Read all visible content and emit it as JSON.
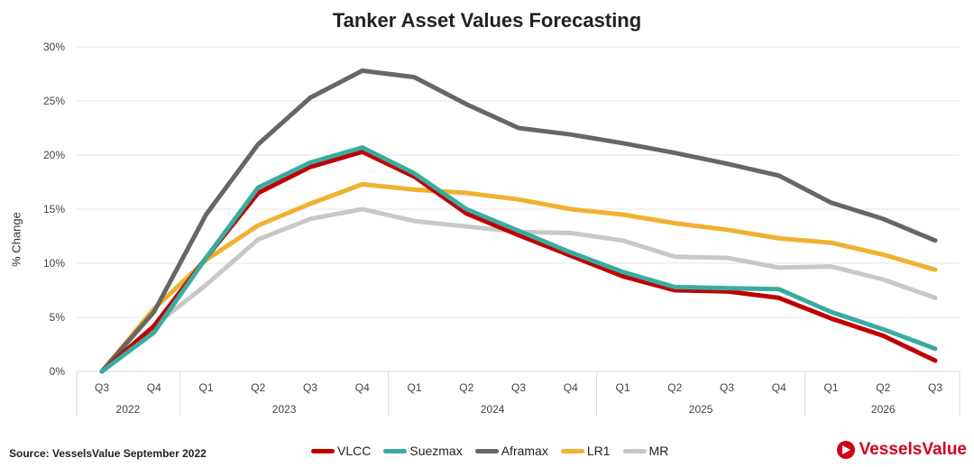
{
  "chart_data": {
    "type": "line",
    "title": "Tanker Asset Values Forecasting",
    "xlabel": "",
    "ylabel": "% Change",
    "ylim": [
      0,
      30
    ],
    "yticks": [
      "0%",
      "5%",
      "10%",
      "15%",
      "20%",
      "25%",
      "30%"
    ],
    "grid": true,
    "legend_position": "bottom",
    "categories": [
      "Q3",
      "Q4",
      "Q1",
      "Q2",
      "Q3",
      "Q4",
      "Q1",
      "Q2",
      "Q3",
      "Q4",
      "Q1",
      "Q2",
      "Q3",
      "Q4",
      "Q1",
      "Q2",
      "Q3"
    ],
    "years": [
      {
        "label": "2022",
        "count": 2
      },
      {
        "label": "2023",
        "count": 4
      },
      {
        "label": "2024",
        "count": 4
      },
      {
        "label": "2025",
        "count": 4
      },
      {
        "label": "2026",
        "count": 3
      }
    ],
    "series": [
      {
        "name": "VLCC",
        "color": "#c00000",
        "values": [
          0,
          4.2,
          10.5,
          16.5,
          18.9,
          20.3,
          18.0,
          14.6,
          12.6,
          10.7,
          8.8,
          7.5,
          7.4,
          6.8,
          4.9,
          3.3,
          1.0
        ]
      },
      {
        "name": "Suezmax",
        "color": "#3aaba0",
        "values": [
          0,
          3.6,
          10.5,
          17.0,
          19.3,
          20.7,
          18.3,
          15.0,
          13.0,
          11.0,
          9.2,
          7.8,
          7.7,
          7.6,
          5.5,
          3.9,
          2.1
        ]
      },
      {
        "name": "Aframax",
        "color": "#666666",
        "values": [
          0,
          5.5,
          14.5,
          21.0,
          25.3,
          27.8,
          27.2,
          24.7,
          22.5,
          21.9,
          21.1,
          20.2,
          19.2,
          18.1,
          15.6,
          14.1,
          12.1
        ]
      },
      {
        "name": "LR1",
        "color": "#f0b030",
        "values": [
          0,
          5.8,
          10.3,
          13.5,
          15.5,
          17.3,
          16.8,
          16.5,
          15.9,
          15.0,
          14.5,
          13.7,
          13.1,
          12.3,
          11.9,
          10.8,
          9.4
        ]
      },
      {
        "name": "MR",
        "color": "#c8c8c8",
        "values": [
          0,
          4.2,
          8.0,
          12.2,
          14.1,
          15.0,
          13.9,
          13.4,
          12.9,
          12.8,
          12.1,
          10.6,
          10.5,
          9.6,
          9.7,
          8.5,
          6.8
        ]
      }
    ]
  },
  "footer": {
    "source": "Source: VesselsValue September 2022",
    "brand": "VesselsValue"
  }
}
